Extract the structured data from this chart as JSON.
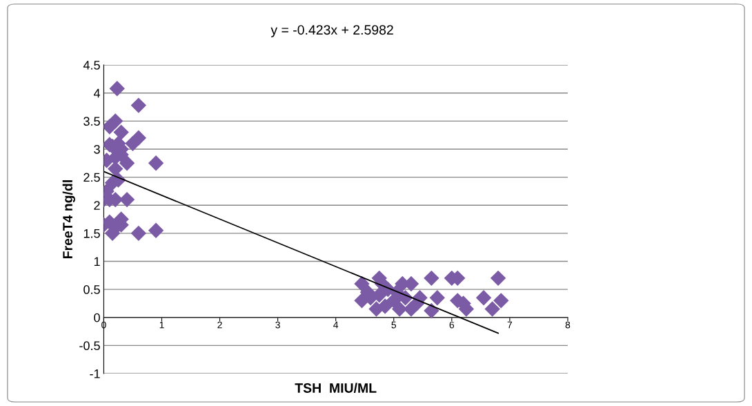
{
  "chart_data": {
    "type": "scatter",
    "xlabel": "TSH  MIU/ML",
    "ylabel": "FreeT4 ng/dl",
    "annotations": [
      "y = -0.423x + 2.5982"
    ],
    "xlim": [
      0,
      8
    ],
    "xticks": [
      0,
      1,
      2,
      3,
      4,
      5,
      6,
      7,
      8
    ],
    "ylim": [
      -1,
      4.5
    ],
    "yticks": [
      -1,
      -0.5,
      0,
      0.5,
      1,
      1.5,
      2,
      2.5,
      3,
      3.5,
      4,
      4.5
    ],
    "grid": "y",
    "marker": "diamond",
    "series": [
      {
        "color": "#7b5ba6",
        "x": [
          0.23,
          0.6,
          0.1,
          0.2,
          0.3,
          0.25,
          0.1,
          0.5,
          0.6,
          0.15,
          0.05,
          0.2,
          0.3,
          0.2,
          0.4,
          0.9,
          0.15,
          0.05,
          0.0,
          0.1,
          0.2,
          0.4,
          0.1,
          0.2,
          0.3,
          0.0,
          0.15,
          0.3,
          0.6,
          0.9,
          0.25,
          0.3,
          4.45,
          4.45,
          4.55,
          4.7,
          4.75,
          4.8,
          4.75,
          4.85,
          4.9,
          5.0,
          5.1,
          5.15,
          5.2,
          5.3,
          5.3,
          5.45,
          5.65,
          5.65,
          5.75,
          6.0,
          6.1,
          6.1,
          6.2,
          6.25,
          6.55,
          6.7,
          6.8,
          6.85,
          4.6,
          5.05,
          5.4
        ],
        "values": [
          4.08,
          3.78,
          3.4,
          3.5,
          3.3,
          3.1,
          3.08,
          3.1,
          3.2,
          3.05,
          2.8,
          2.85,
          2.9,
          2.65,
          2.75,
          2.75,
          2.4,
          2.25,
          2.1,
          2.1,
          2.1,
          2.1,
          1.7,
          1.6,
          1.75,
          1.65,
          1.5,
          1.65,
          1.5,
          1.55,
          2.45,
          3.0,
          0.6,
          0.3,
          0.45,
          0.15,
          0.7,
          0.6,
          0.4,
          0.2,
          0.5,
          0.3,
          0.15,
          0.6,
          0.35,
          0.6,
          0.15,
          0.35,
          0.7,
          0.12,
          0.35,
          0.7,
          0.7,
          0.3,
          0.25,
          0.15,
          0.35,
          0.15,
          0.7,
          0.3,
          0.35,
          0.45,
          0.25
        ]
      },
      {
        "type": "line",
        "color": "#000000",
        "marker": "none",
        "x": [
          0,
          6.8
        ],
        "values": [
          2.6,
          -0.28
        ]
      }
    ]
  }
}
